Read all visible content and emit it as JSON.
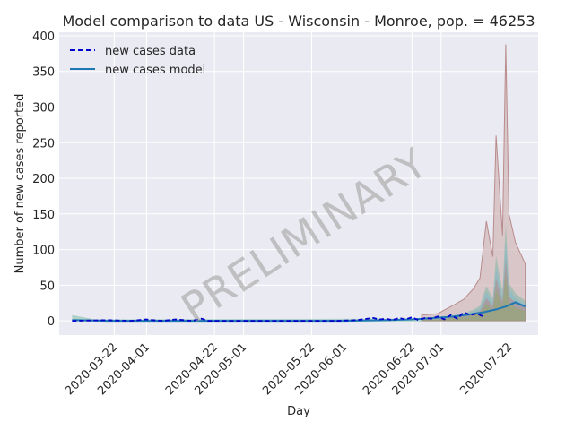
{
  "chart_data": {
    "type": "line",
    "title": "Model comparison to data US - Wisconsin - Monroe, pop. = 46253",
    "xlabel": "Day",
    "ylabel": "Number of new cases reported",
    "x_range": [
      "2020-03-05",
      "2020-07-31"
    ],
    "ylim": [
      -20,
      405
    ],
    "y_ticks": [
      0,
      50,
      100,
      150,
      200,
      250,
      300,
      350,
      400
    ],
    "x_ticks": [
      "2020-03-22",
      "2020-04-01",
      "2020-04-22",
      "2020-05-01",
      "2020-05-22",
      "2020-06-01",
      "2020-06-22",
      "2020-07-01",
      "2020-07-22"
    ],
    "grid": true,
    "legend_position": "top-left",
    "watermark": "PRELIMINARY",
    "colors": {
      "background": "#eaeaf2",
      "grid": "#ffffff",
      "data": "#0000cc",
      "model": "#1f77b4"
    },
    "series": [
      {
        "name": "new cases data",
        "style": "dashed",
        "x": [
          "2020-03-09",
          "2020-03-20",
          "2020-03-27",
          "2020-04-01",
          "2020-04-03",
          "2020-04-06",
          "2020-04-10",
          "2020-04-15",
          "2020-04-18",
          "2020-04-20",
          "2020-04-30",
          "2020-05-15",
          "2020-05-30",
          "2020-06-05",
          "2020-06-10",
          "2020-06-12",
          "2020-06-14",
          "2020-06-16",
          "2020-06-18",
          "2020-06-20",
          "2020-06-22",
          "2020-06-24",
          "2020-06-26",
          "2020-06-28",
          "2020-06-30",
          "2020-07-02",
          "2020-07-04",
          "2020-07-06",
          "2020-07-08",
          "2020-07-10",
          "2020-07-12",
          "2020-07-14"
        ],
        "values": [
          0,
          1,
          0,
          2,
          1,
          0,
          2,
          0,
          3,
          0,
          0,
          0,
          0,
          1,
          4,
          2,
          3,
          1,
          4,
          2,
          5,
          1,
          4,
          3,
          6,
          2,
          8,
          3,
          12,
          8,
          10,
          6
        ]
      },
      {
        "name": "new cases model",
        "style": "solid",
        "x": [
          "2020-03-09",
          "2020-03-20",
          "2020-04-01",
          "2020-04-15",
          "2020-05-01",
          "2020-05-15",
          "2020-06-01",
          "2020-06-15",
          "2020-06-22",
          "2020-06-29",
          "2020-07-05",
          "2020-07-10",
          "2020-07-14",
          "2020-07-18",
          "2020-07-21",
          "2020-07-24",
          "2020-07-27"
        ],
        "values": [
          1,
          0,
          0,
          0,
          0,
          0,
          0,
          1,
          2,
          4,
          6,
          9,
          12,
          16,
          20,
          26,
          20
        ]
      }
    ],
    "ensemble_band": {
      "x": [
        "2020-06-25",
        "2020-06-30",
        "2020-07-04",
        "2020-07-08",
        "2020-07-11",
        "2020-07-13",
        "2020-07-15",
        "2020-07-17",
        "2020-07-18",
        "2020-07-20",
        "2020-07-21",
        "2020-07-22",
        "2020-07-24",
        "2020-07-27"
      ],
      "upper": [
        8,
        10,
        20,
        30,
        45,
        60,
        140,
        90,
        260,
        120,
        388,
        150,
        110,
        80
      ],
      "lower": [
        0,
        0,
        0,
        0,
        0,
        0,
        0,
        0,
        0,
        0,
        0,
        0,
        0,
        0
      ]
    }
  }
}
